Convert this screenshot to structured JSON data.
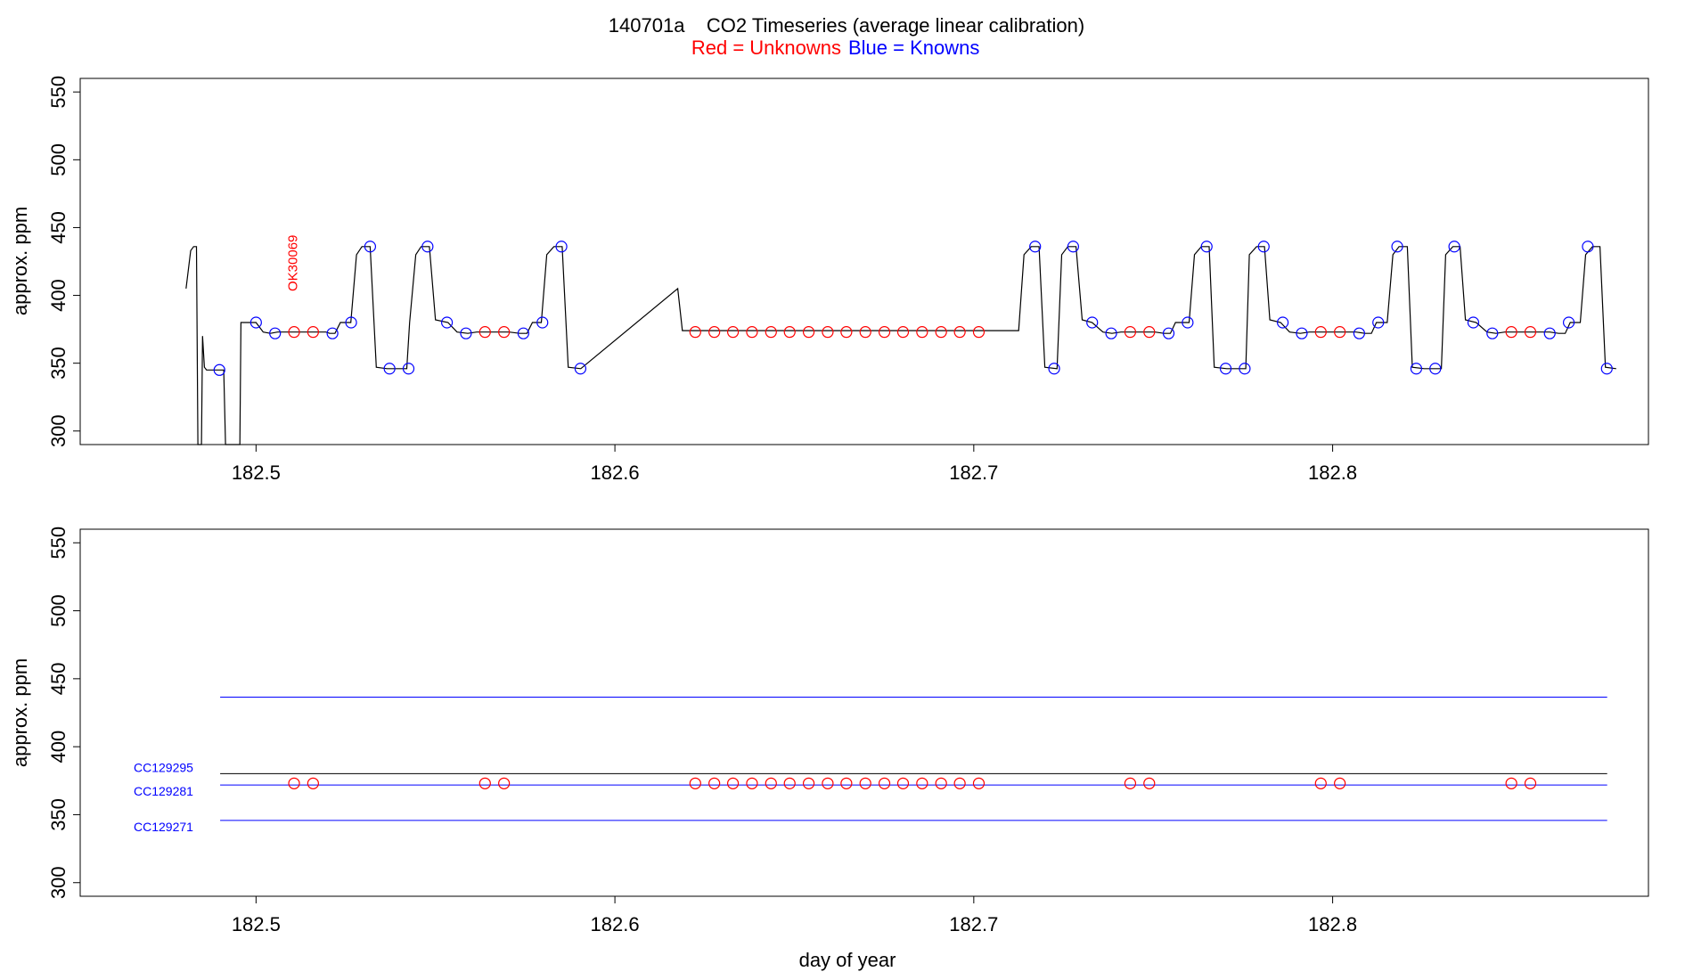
{
  "title": {
    "main": "140701a    CO2 Timeseries (average linear calibration)",
    "legend_red": "Red = Unknowns",
    "legend_blue": "Blue = Knowns"
  },
  "colors": {
    "unknown": "#ff0000",
    "known": "#0000ff",
    "trace": "#000000",
    "cal_line_top": "#000000"
  },
  "chart_data": [
    {
      "type": "line",
      "panel": "top",
      "title": "",
      "xlabel": "",
      "ylabel": "approx. ppm",
      "xlim": [
        182.451,
        182.888
      ],
      "ylim": [
        290,
        560
      ],
      "x_ticks": [
        "182.5",
        "182.6",
        "182.7",
        "182.8"
      ],
      "y_ticks": [
        "300",
        "350",
        "400",
        "450",
        "500",
        "550"
      ],
      "annotation": {
        "text": "OK30069",
        "x": 182.5115,
        "y": 403
      },
      "trace": [
        [
          182.4805,
          405
        ],
        [
          182.4818,
          433
        ],
        [
          182.4826,
          436
        ],
        [
          182.4834,
          436
        ],
        [
          182.4838,
          290
        ],
        [
          182.4848,
          290
        ],
        [
          182.4851,
          370
        ],
        [
          182.4856,
          347
        ],
        [
          182.4862,
          345
        ],
        [
          182.491,
          345
        ],
        [
          182.4915,
          290
        ],
        [
          182.4955,
          290
        ],
        [
          182.4958,
          380
        ],
        [
          182.5,
          380
        ],
        [
          182.502,
          373
        ],
        [
          182.504,
          372
        ],
        [
          182.506,
          373
        ],
        [
          182.5195,
          373
        ],
        [
          182.5205,
          372
        ],
        [
          182.522,
          372
        ],
        [
          182.5235,
          380
        ],
        [
          182.5264,
          380
        ],
        [
          182.528,
          430
        ],
        [
          182.5295,
          436
        ],
        [
          182.5318,
          436
        ],
        [
          182.5335,
          347
        ],
        [
          182.5365,
          346
        ],
        [
          182.542,
          346
        ],
        [
          182.5428,
          380
        ],
        [
          182.5445,
          430
        ],
        [
          182.546,
          436
        ],
        [
          182.5483,
          436
        ],
        [
          182.55,
          382
        ],
        [
          182.5535,
          380
        ],
        [
          182.556,
          373
        ],
        [
          182.559,
          372
        ],
        [
          182.5615,
          373
        ],
        [
          182.5705,
          373
        ],
        [
          182.5735,
          372
        ],
        [
          182.5755,
          372
        ],
        [
          182.577,
          380
        ],
        [
          182.5795,
          380
        ],
        [
          182.581,
          430
        ],
        [
          182.583,
          436
        ],
        [
          182.5853,
          436
        ],
        [
          182.587,
          347
        ],
        [
          182.5905,
          346
        ],
        [
          182.6175,
          405
        ],
        [
          182.6188,
          374
        ],
        [
          182.7125,
          374
        ],
        [
          182.714,
          430
        ],
        [
          182.716,
          436
        ],
        [
          182.7182,
          436
        ],
        [
          182.7198,
          347
        ],
        [
          182.7232,
          346
        ],
        [
          182.7245,
          430
        ],
        [
          182.7262,
          436
        ],
        [
          182.7285,
          436
        ],
        [
          182.7302,
          382
        ],
        [
          182.733,
          380
        ],
        [
          182.736,
          373
        ],
        [
          182.7385,
          372
        ],
        [
          182.741,
          373
        ],
        [
          182.7505,
          373
        ],
        [
          182.753,
          372
        ],
        [
          182.7548,
          372
        ],
        [
          182.7562,
          380
        ],
        [
          182.76,
          380
        ],
        [
          182.7615,
          430
        ],
        [
          182.7634,
          436
        ],
        [
          182.7656,
          436
        ],
        [
          182.767,
          347
        ],
        [
          182.7705,
          346
        ],
        [
          182.7758,
          346
        ],
        [
          182.7768,
          430
        ],
        [
          182.7788,
          436
        ],
        [
          182.781,
          436
        ],
        [
          182.7825,
          382
        ],
        [
          182.7855,
          380
        ],
        [
          182.788,
          373
        ],
        [
          182.791,
          372
        ],
        [
          182.7935,
          373
        ],
        [
          182.8065,
          373
        ],
        [
          182.809,
          372
        ],
        [
          182.8108,
          372
        ],
        [
          182.8122,
          380
        ],
        [
          182.8152,
          380
        ],
        [
          182.8168,
          430
        ],
        [
          182.8185,
          436
        ],
        [
          182.8208,
          436
        ],
        [
          182.8222,
          347
        ],
        [
          182.8255,
          346
        ],
        [
          182.8303,
          346
        ],
        [
          182.8315,
          430
        ],
        [
          182.8335,
          436
        ],
        [
          182.8355,
          436
        ],
        [
          182.837,
          382
        ],
        [
          182.84,
          380
        ],
        [
          182.843,
          373
        ],
        [
          182.8455,
          372
        ],
        [
          182.848,
          373
        ],
        [
          182.8605,
          373
        ],
        [
          182.863,
          372
        ],
        [
          182.8648,
          372
        ],
        [
          182.8662,
          380
        ],
        [
          182.869,
          380
        ],
        [
          182.8705,
          430
        ],
        [
          182.8724,
          436
        ],
        [
          182.8745,
          436
        ],
        [
          182.876,
          347
        ],
        [
          182.879,
          346
        ]
      ],
      "knowns": [
        [
          182.4898,
          345
        ],
        [
          182.5,
          380
        ],
        [
          182.5053,
          372
        ],
        [
          182.5213,
          372
        ],
        [
          182.5265,
          380
        ],
        [
          182.5318,
          436
        ],
        [
          182.5372,
          346
        ],
        [
          182.5425,
          346
        ],
        [
          182.5478,
          436
        ],
        [
          182.5532,
          380
        ],
        [
          182.5585,
          372
        ],
        [
          182.5745,
          372
        ],
        [
          182.5798,
          380
        ],
        [
          182.5851,
          436
        ],
        [
          182.5904,
          346
        ],
        [
          182.7171,
          436
        ],
        [
          182.7224,
          346
        ],
        [
          182.7277,
          436
        ],
        [
          182.733,
          380
        ],
        [
          182.7383,
          372
        ],
        [
          182.7543,
          372
        ],
        [
          182.7596,
          380
        ],
        [
          182.7649,
          436
        ],
        [
          182.7702,
          346
        ],
        [
          182.7755,
          346
        ],
        [
          182.7808,
          436
        ],
        [
          182.7861,
          380
        ],
        [
          182.7914,
          372
        ],
        [
          182.8074,
          372
        ],
        [
          182.8127,
          380
        ],
        [
          182.818,
          436
        ],
        [
          182.8233,
          346
        ],
        [
          182.8286,
          346
        ],
        [
          182.8339,
          436
        ],
        [
          182.8392,
          380
        ],
        [
          182.8445,
          372
        ],
        [
          182.8605,
          372
        ],
        [
          182.8658,
          380
        ],
        [
          182.8711,
          436
        ],
        [
          182.8764,
          346
        ]
      ],
      "unknowns": [
        [
          182.5106,
          373
        ],
        [
          182.5159,
          373
        ],
        [
          182.5638,
          373
        ],
        [
          182.5691,
          373
        ],
        [
          182.6224,
          373
        ],
        [
          182.6277,
          373
        ],
        [
          182.6329,
          373
        ],
        [
          182.6382,
          373
        ],
        [
          182.6435,
          373
        ],
        [
          182.6487,
          373
        ],
        [
          182.654,
          373
        ],
        [
          182.6593,
          373
        ],
        [
          182.6645,
          373
        ],
        [
          182.6698,
          373
        ],
        [
          182.6751,
          373
        ],
        [
          182.6803,
          373
        ],
        [
          182.6856,
          373
        ],
        [
          182.6909,
          373
        ],
        [
          182.6961,
          373
        ],
        [
          182.7014,
          373
        ],
        [
          182.7436,
          373
        ],
        [
          182.7489,
          373
        ],
        [
          182.7967,
          373
        ],
        [
          182.802,
          373
        ],
        [
          182.8498,
          373
        ],
        [
          182.8551,
          373
        ]
      ]
    },
    {
      "type": "scatter",
      "panel": "bottom",
      "title": "",
      "xlabel": "day of year",
      "ylabel": "approx. ppm",
      "xlim": [
        182.451,
        182.888
      ],
      "ylim": [
        290,
        560
      ],
      "x_ticks": [
        "182.5",
        "182.6",
        "182.7",
        "182.8"
      ],
      "y_ticks": [
        "300",
        "350",
        "400",
        "450",
        "500",
        "550"
      ],
      "calibration_lines": [
        {
          "y": 436.5,
          "x": [
            182.49,
            182.8765
          ],
          "color": "#0000ff",
          "label": ""
        },
        {
          "y": 380.2,
          "x": [
            182.49,
            182.8765
          ],
          "color": "#000000",
          "label": "CC129295"
        },
        {
          "y": 371.8,
          "x": [
            182.49,
            182.8765
          ],
          "color": "#0000ff",
          "label": "CC129281"
        },
        {
          "y": 345.8,
          "x": [
            182.49,
            182.8765
          ],
          "color": "#0000ff",
          "label": "CC129271"
        }
      ],
      "line_labels": [
        "CC129295",
        "CC129281",
        "CC129271"
      ],
      "unknowns": [
        [
          182.5106,
          373
        ],
        [
          182.5159,
          373
        ],
        [
          182.5638,
          373
        ],
        [
          182.5691,
          373
        ],
        [
          182.6224,
          373
        ],
        [
          182.6277,
          373
        ],
        [
          182.6329,
          373
        ],
        [
          182.6382,
          373
        ],
        [
          182.6435,
          373
        ],
        [
          182.6487,
          373
        ],
        [
          182.654,
          373
        ],
        [
          182.6593,
          373
        ],
        [
          182.6645,
          373
        ],
        [
          182.6698,
          373
        ],
        [
          182.6751,
          373
        ],
        [
          182.6803,
          373
        ],
        [
          182.6856,
          373
        ],
        [
          182.6909,
          373
        ],
        [
          182.6961,
          373
        ],
        [
          182.7014,
          373
        ],
        [
          182.7436,
          373
        ],
        [
          182.7489,
          373
        ],
        [
          182.7967,
          373
        ],
        [
          182.802,
          373
        ],
        [
          182.8498,
          373
        ],
        [
          182.8551,
          373
        ]
      ]
    }
  ]
}
